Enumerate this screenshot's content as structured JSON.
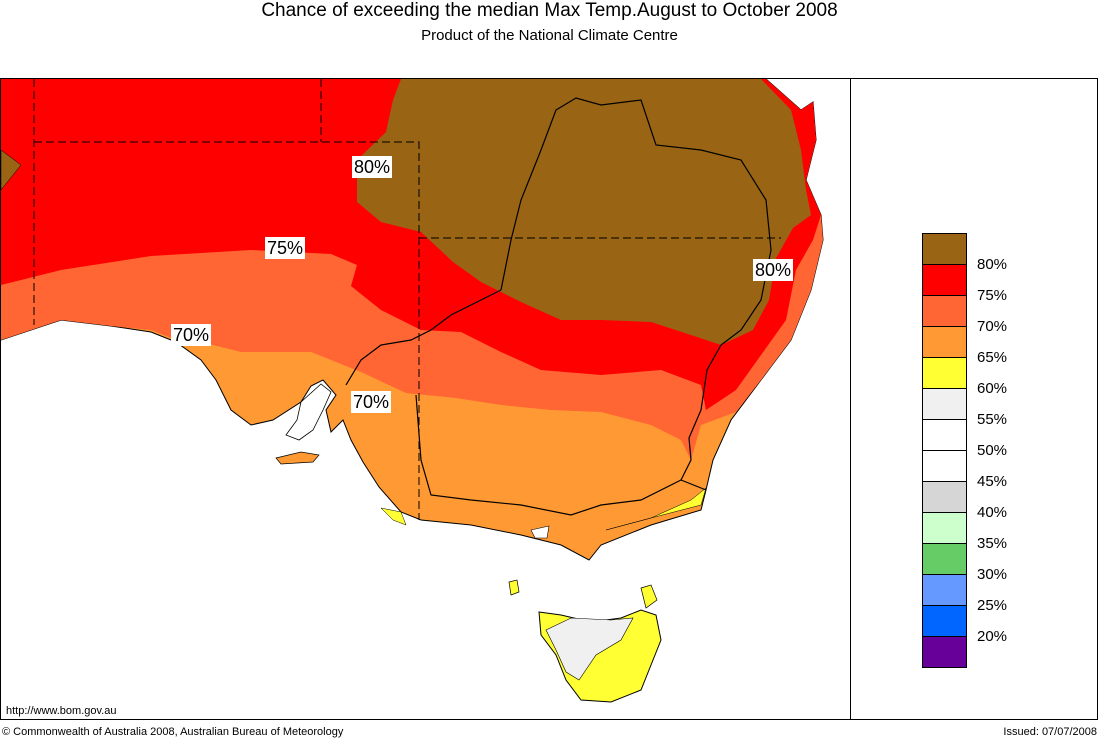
{
  "title": "Chance of exceeding the median Max Temp.August to October 2008",
  "subtitle": "Product of the National Climate Centre",
  "map_labels": [
    "80%",
    "75%",
    "70%",
    "70%",
    "80%"
  ],
  "legend": {
    "colors": [
      "#996515",
      "#FF0000",
      "#FF6633",
      "#FF9933",
      "#FFFF33",
      "#F0F0F0",
      "#FFFFFF",
      "#FFFFFF",
      "#D6D6D6",
      "#CCFFCC",
      "#66CC66",
      "#6699FF",
      "#0066FF",
      "#660099"
    ],
    "labels": [
      "80%",
      "75%",
      "70%",
      "65%",
      "60%",
      "55%",
      "50%",
      "45%",
      "40%",
      "35%",
      "30%",
      "25%",
      "20%"
    ]
  },
  "footer": {
    "url": "http://www.bom.gov.au",
    "copyright": "© Commonwealth of Australia 2008, Australian Bureau of Meteorology",
    "issued": "Issued: 07/07/2008"
  }
}
